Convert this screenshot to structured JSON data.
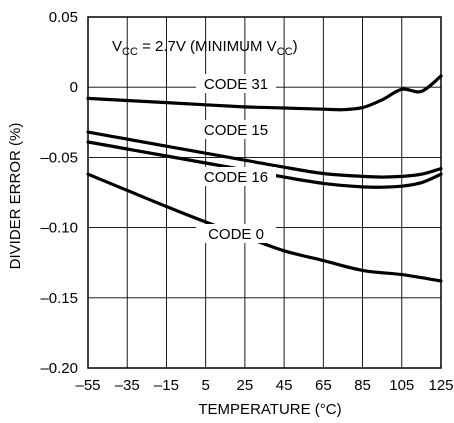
{
  "chart_data": {
    "type": "line",
    "xlabel": "TEMPERATURE (°C)",
    "ylabel": "DIVIDER ERROR (%)",
    "xlim": [
      -55,
      125
    ],
    "ylim": [
      -0.2,
      0.05
    ],
    "x_ticks": [
      -55,
      -35,
      -15,
      5,
      25,
      45,
      65,
      85,
      105,
      125
    ],
    "x_tick_labels": [
      "–55",
      "–35",
      "–15",
      "5",
      "25",
      "45",
      "65",
      "85",
      "105",
      "125"
    ],
    "y_ticks": [
      0.05,
      0,
      -0.05,
      -0.1,
      -0.15,
      -0.2
    ],
    "y_tick_labels": [
      "0.05",
      "0",
      "–0.05",
      "–0.10",
      "–0.15",
      "–0.20"
    ],
    "grid": true,
    "annotation": {
      "v": "V",
      "v_sub": "CC",
      "middle": " = 2.7V (MINIMUM V",
      "end_sub": "CC",
      "end": ")"
    },
    "series": [
      {
        "name": "CODE 31",
        "x": [
          -55,
          -35,
          -15,
          5,
          25,
          45,
          65,
          75,
          85,
          95,
          105,
          115,
          125
        ],
        "y": [
          -0.008,
          -0.0095,
          -0.011,
          -0.0125,
          -0.014,
          -0.0148,
          -0.0157,
          -0.016,
          -0.0145,
          -0.009,
          -0.0015,
          -0.003,
          0.008
        ]
      },
      {
        "name": "CODE 15",
        "x": [
          -55,
          -35,
          -15,
          5,
          25,
          45,
          65,
          85,
          95,
          105,
          115,
          125
        ],
        "y": [
          -0.032,
          -0.037,
          -0.042,
          -0.047,
          -0.052,
          -0.057,
          -0.0615,
          -0.0635,
          -0.064,
          -0.0635,
          -0.062,
          -0.058
        ]
      },
      {
        "name": "CODE 16",
        "x": [
          -55,
          -35,
          -15,
          5,
          25,
          45,
          65,
          85,
          95,
          105,
          115,
          125
        ],
        "y": [
          -0.039,
          -0.044,
          -0.049,
          -0.054,
          -0.059,
          -0.064,
          -0.0685,
          -0.071,
          -0.0712,
          -0.0705,
          -0.068,
          -0.062
        ]
      },
      {
        "name": "CODE 0",
        "x": [
          -55,
          -35,
          -15,
          5,
          25,
          45,
          65,
          85,
          105,
          125
        ],
        "y": [
          -0.062,
          -0.0735,
          -0.085,
          -0.096,
          -0.1065,
          -0.1165,
          -0.1235,
          -0.1305,
          -0.1335,
          -0.138
        ]
      }
    ]
  }
}
